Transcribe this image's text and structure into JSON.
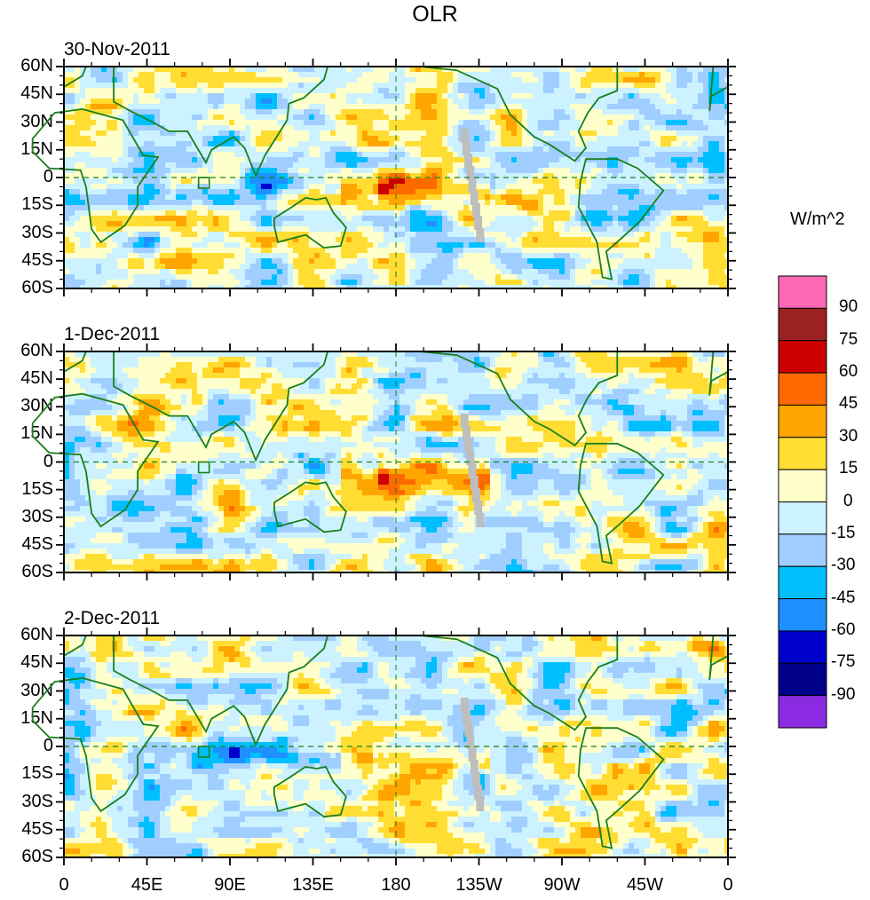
{
  "chart_data": {
    "type": "heatmap",
    "title": "OLR",
    "units": "W/m^2",
    "panels": [
      {
        "date": "30-Nov-2011"
      },
      {
        "date": "1-Dec-2011"
      },
      {
        "date": "2-Dec-2011"
      }
    ],
    "x_ticks": [
      "0",
      "45E",
      "90E",
      "135E",
      "180",
      "135W",
      "90W",
      "45W",
      "0"
    ],
    "x_range_deg": [
      0,
      360
    ],
    "y_ticks": [
      "60N",
      "45N",
      "30N",
      "15N",
      "0",
      "15S",
      "30S",
      "45S",
      "60S"
    ],
    "y_range_deg": [
      -60,
      60
    ],
    "colorbar": {
      "levels": [
        90,
        75,
        60,
        45,
        30,
        15,
        0,
        -15,
        -30,
        -45,
        -60,
        -75,
        -90
      ],
      "level_labels": [
        "90",
        "75",
        "60",
        "45",
        "30",
        "15",
        "0",
        "-15",
        "-30",
        "-45",
        "-60",
        "-75",
        "-90"
      ],
      "colors": [
        "#ff69b4",
        "#9c2222",
        "#cc0000",
        "#ff6a00",
        "#ffa500",
        "#ffdd33",
        "#ffffcc",
        "#ccf2ff",
        "#a0cfff",
        "#00bfff",
        "#1e90ff",
        "#0000cd",
        "#00008b",
        "#8a2be2"
      ]
    },
    "missing_color": "#bebebe",
    "coastline_color": "#1a7f1a",
    "features": [
      "coastlines",
      "country borders",
      "US state borders",
      "dashed equator line",
      "dashed dateline at 180"
    ]
  }
}
